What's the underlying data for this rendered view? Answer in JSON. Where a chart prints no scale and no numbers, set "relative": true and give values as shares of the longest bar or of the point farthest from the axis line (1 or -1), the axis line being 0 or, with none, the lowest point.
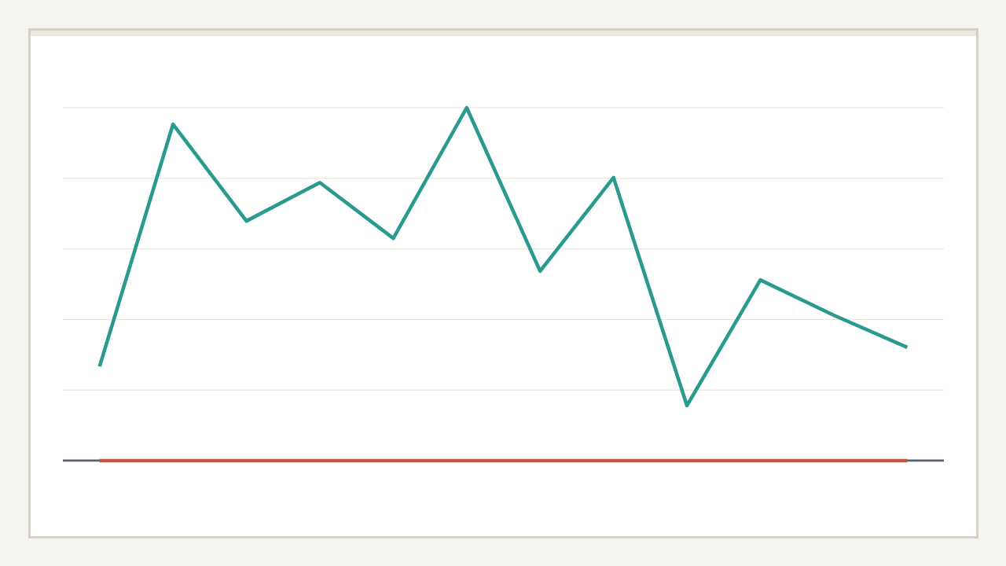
{
  "chart_data": {
    "type": "line",
    "relative": true,
    "categories": [
      null,
      null,
      null,
      null,
      null,
      null,
      null,
      null,
      null,
      null,
      null,
      null
    ],
    "series": [
      {
        "color": "#2a9a8f",
        "values": [
          0.267,
          0.953,
          0.679,
          0.788,
          0.63,
          1,
          0.537,
          0.802,
          0.156,
          0.512,
          0.412,
          0.321
        ]
      },
      {
        "color": "#c0573e",
        "values": [
          0,
          0,
          0,
          0,
          0,
          0,
          0,
          0,
          0,
          0,
          0,
          0
        ]
      }
    ],
    "grid": "y"
  }
}
